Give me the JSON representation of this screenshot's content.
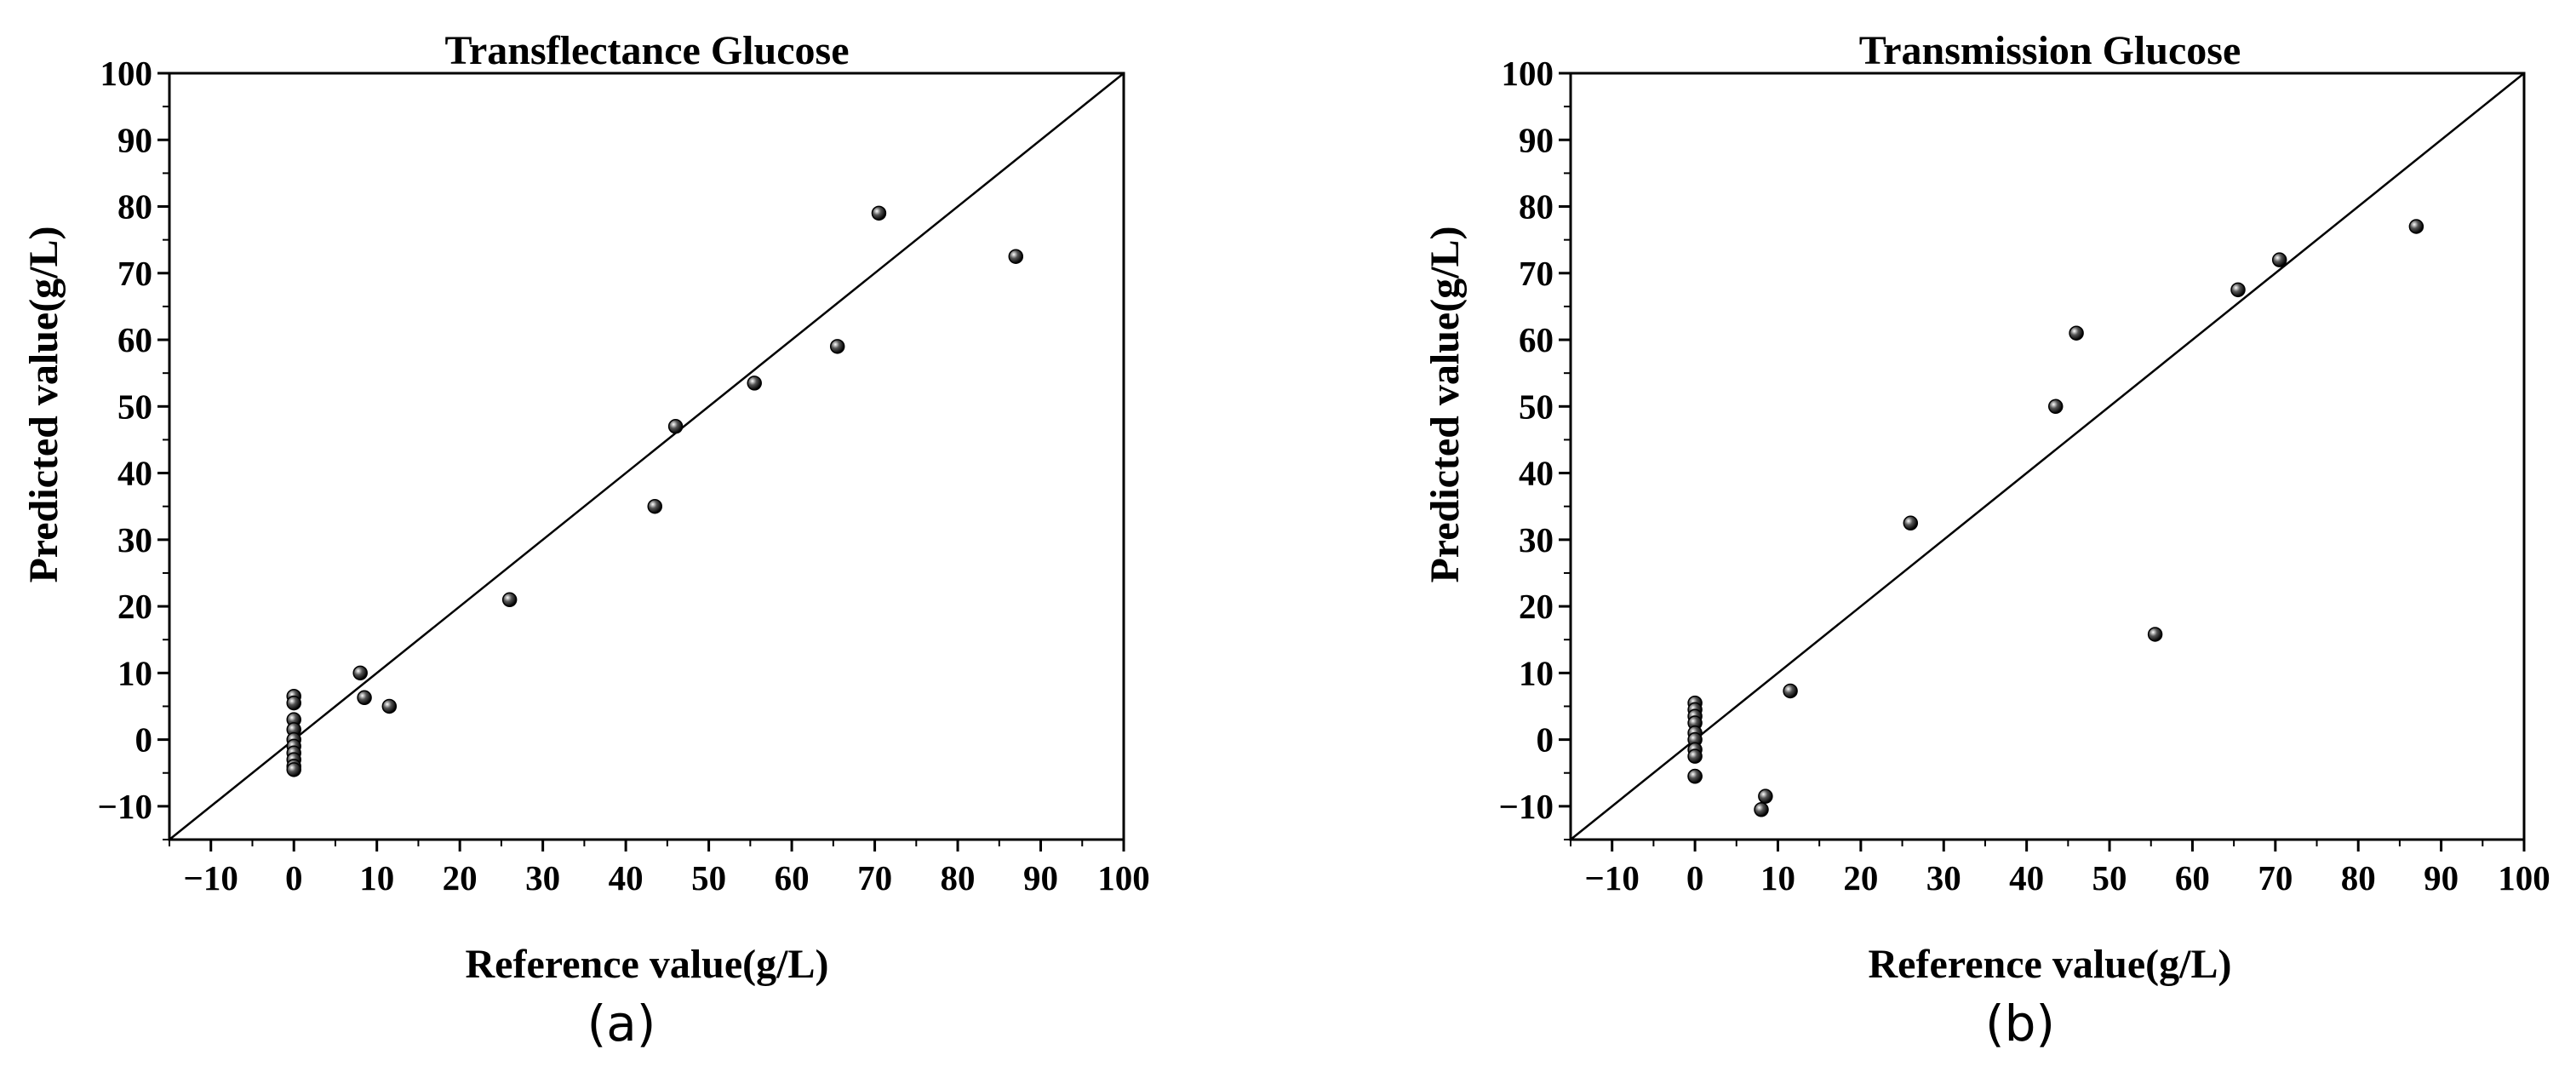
{
  "chart_data": [
    {
      "type": "scatter",
      "panel_label": "(a)",
      "title": "Transflectance Glucose",
      "xlabel": "Reference value(g/L)",
      "ylabel": "Predicted value(g/L)",
      "xlim": [
        -15,
        100
      ],
      "ylim": [
        -15,
        100
      ],
      "xticks": [
        -10,
        0,
        10,
        20,
        30,
        40,
        50,
        60,
        70,
        80,
        90,
        100
      ],
      "yticks": [
        -10,
        0,
        10,
        20,
        30,
        40,
        50,
        60,
        70,
        80,
        90,
        100
      ],
      "identity_line": true,
      "grid": false,
      "series": [
        {
          "x": [
            0,
            0,
            0,
            0,
            0,
            0,
            0,
            0,
            0,
            0,
            8,
            8.5,
            11.5,
            26,
            43.5,
            46,
            55.5,
            65.5,
            70.5,
            87
          ],
          "y": [
            6.5,
            5.5,
            3,
            1.5,
            0,
            -1,
            -2,
            -3,
            -4,
            -4.5,
            10,
            6.3,
            5,
            21,
            35,
            47,
            53.5,
            59,
            79,
            72.5
          ]
        }
      ]
    },
    {
      "type": "scatter",
      "panel_label": "(b)",
      "title": "Transmission Glucose",
      "xlabel": "Reference value(g/L)",
      "ylabel": "Predicted value(g/L)",
      "xlim": [
        -15,
        100
      ],
      "ylim": [
        -15,
        100
      ],
      "xticks": [
        -10,
        0,
        10,
        20,
        30,
        40,
        50,
        60,
        70,
        80,
        90,
        100
      ],
      "yticks": [
        -10,
        0,
        10,
        20,
        30,
        40,
        50,
        60,
        70,
        80,
        90,
        100
      ],
      "identity_line": true,
      "grid": false,
      "series": [
        {
          "x": [
            0,
            0,
            0,
            0,
            0,
            0,
            0,
            0,
            0,
            0,
            8,
            8.5,
            11.5,
            26,
            43.5,
            46,
            55.5,
            65.5,
            70.5,
            87
          ],
          "y": [
            5.5,
            4.5,
            3.5,
            2.5,
            1,
            0,
            -1.5,
            -2.5,
            -5.5,
            -5.5,
            -10.5,
            -8.5,
            7.3,
            32.5,
            50,
            61,
            15.8,
            67.5,
            72,
            77
          ]
        }
      ]
    }
  ]
}
